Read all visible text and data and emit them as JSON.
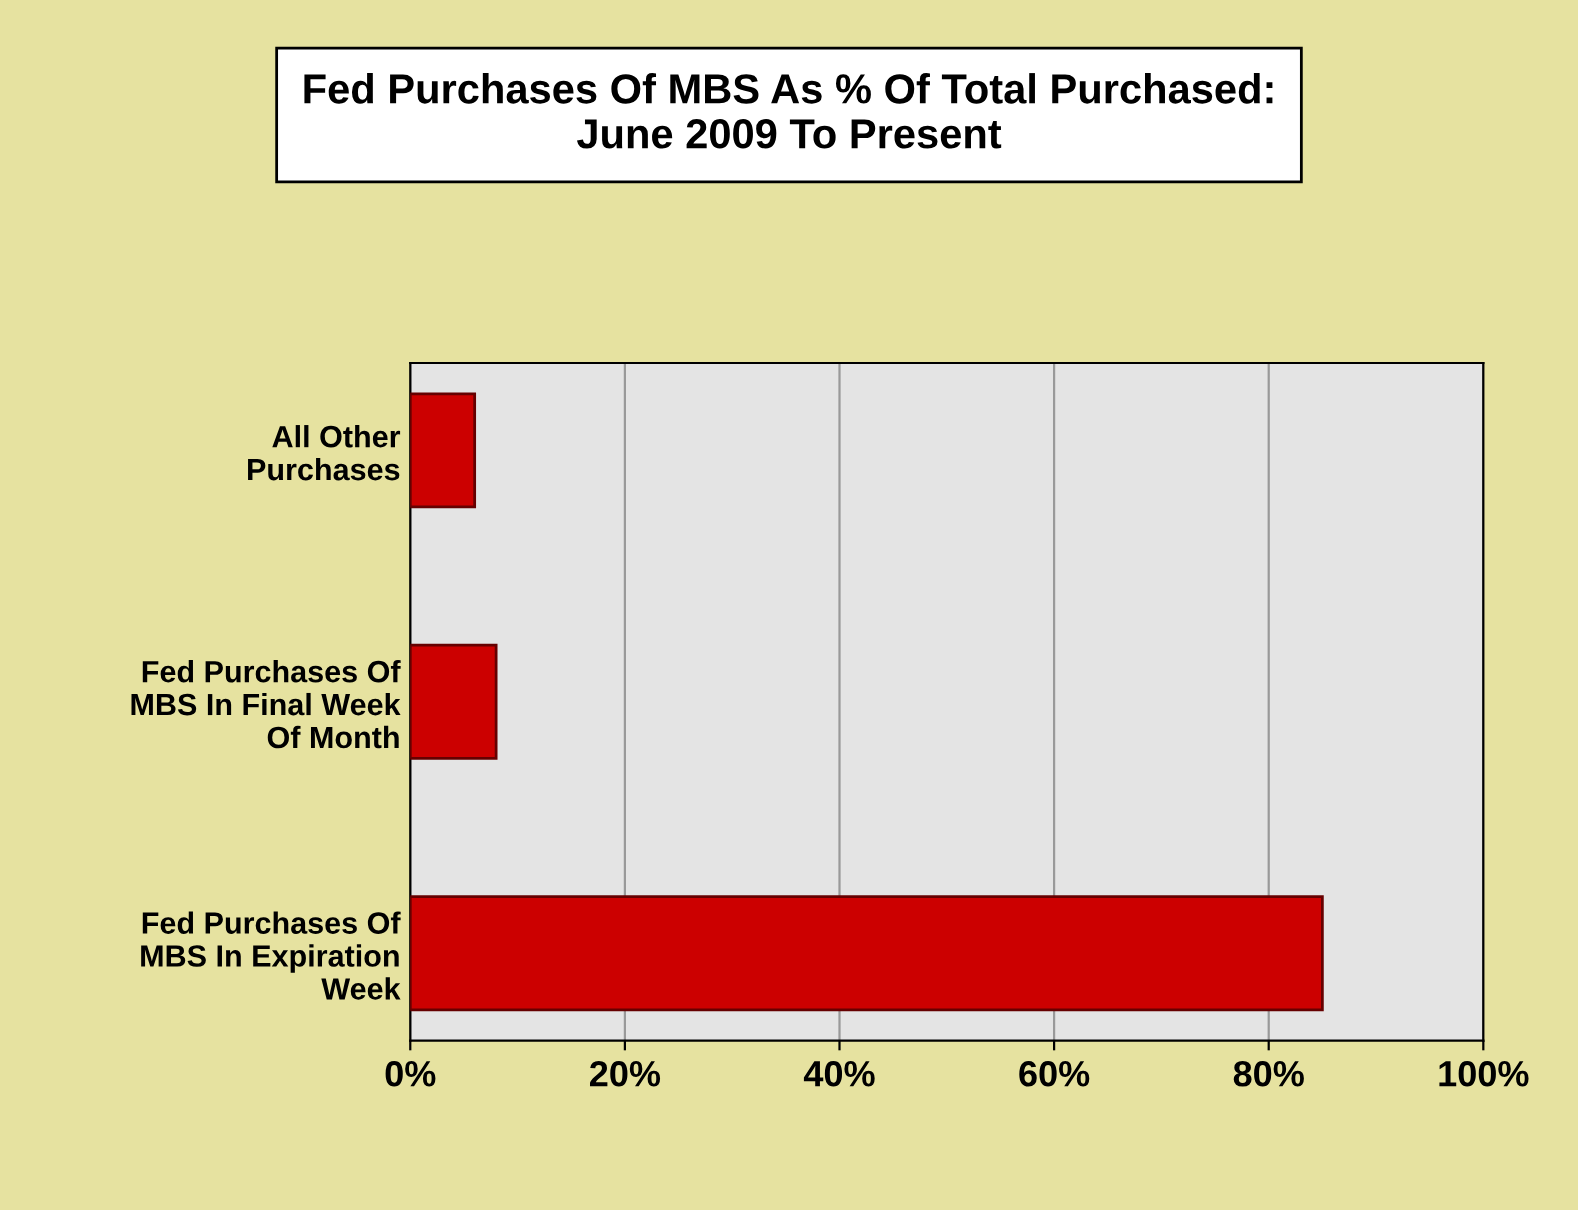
{
  "chart_data": {
    "type": "bar",
    "orientation": "horizontal",
    "title": "Fed Purchases Of MBS As % Of Total Purchased:\nJune 2009 To Present",
    "categories": [
      "All Other\nPurchases",
      "Fed Purchases Of\nMBS In Final Week\nOf Month",
      "Fed Purchases Of\nMBS In Expiration\nWeek"
    ],
    "values": [
      6,
      8,
      85
    ],
    "color": "#cc0000",
    "xlim": [
      0,
      100
    ],
    "xticks": [
      {
        "value": 0,
        "label": "0%"
      },
      {
        "value": 20,
        "label": "20%"
      },
      {
        "value": 40,
        "label": "40%"
      },
      {
        "value": 60,
        "label": "60%"
      },
      {
        "value": 80,
        "label": "80%"
      },
      {
        "value": 100,
        "label": "100%"
      }
    ],
    "grid": "x",
    "legend": false
  }
}
